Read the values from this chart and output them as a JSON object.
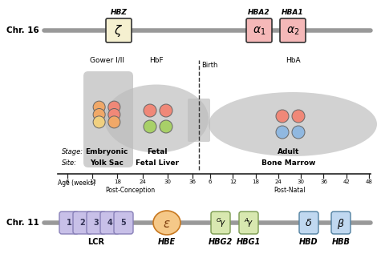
{
  "chr16_label": "Chr. 16",
  "chr11_label": "Chr. 11",
  "hbz_label": "HBZ",
  "hba2_label": "HBA2",
  "hba1_label": "HBA1",
  "hbe_label": "HBE",
  "epsilon_label": "ε",
  "hbg2_label": "HBG2",
  "hbg1_label": "HBG1",
  "hbd_label": "HBD",
  "hbb_label": "HBB",
  "lcr_label": "LCR",
  "gower_label": "Gower I/II",
  "hbf_label": "HbF",
  "hba_label": "HbA",
  "stage_label": "Stage:",
  "site_label": "Site:",
  "embryonic_label": "Embryonic",
  "yolk_sac_label": "Yolk Sac",
  "fetal_label": "Fetal",
  "fetal_liver_label": "Fetal Liver",
  "adult_label": "Adult",
  "bone_marrow_label": "Bone Marrow",
  "birth_label": "Birth",
  "age_label": "Age (weeks)",
  "post_conception_label": "Post-Conception",
  "post_natal_label": "Post-Natal",
  "line_color": "#999999",
  "zeta_box_color": "#f5f0d0",
  "alpha_box_color": "#f5b8b8",
  "lcr_box_color": "#c8c0e8",
  "epsilon_ellipse_color": "#f5c888",
  "gamma_box_color": "#d8e8b0",
  "delta_beta_box_color": "#c0d8f0",
  "blob_color": "#bbbbbb"
}
